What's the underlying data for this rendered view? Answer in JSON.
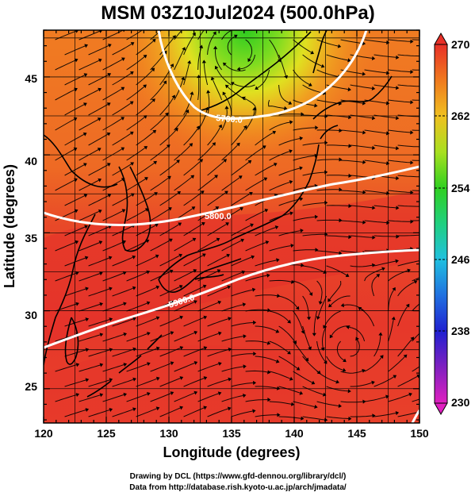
{
  "title": "MSM 03Z10Jul2024 (500.0hPa)",
  "xlabel": "Longitude (degrees)",
  "ylabel": "Latitude  (degrees)",
  "xticks": [
    "120",
    "125",
    "130",
    "135",
    "140",
    "145",
    "150"
  ],
  "yticks": [
    "25",
    "30",
    "35",
    "40",
    "45"
  ],
  "colorbar": {
    "ticks": [
      "270",
      "262",
      "254",
      "246",
      "238",
      "230"
    ],
    "min": 230,
    "max": 270
  },
  "contours": [
    {
      "label": "5900.0",
      "value": 5900
    },
    {
      "label": "5800.0",
      "value": 5800
    },
    {
      "label": "5700.0",
      "value": 5700
    }
  ],
  "credits": {
    "line1": "Drawing by DCL (https://www.gfd-dennou.org/library/dcl/)",
    "line2": "Data from http://database.rish.kyoto-u.ac.jp/arch/jmadata/"
  },
  "colors": {
    "warm_red": "#e8302a",
    "orange": "#f07a1e",
    "yellow": "#f0e020",
    "green": "#40d020",
    "contour": "#ffffff"
  }
}
